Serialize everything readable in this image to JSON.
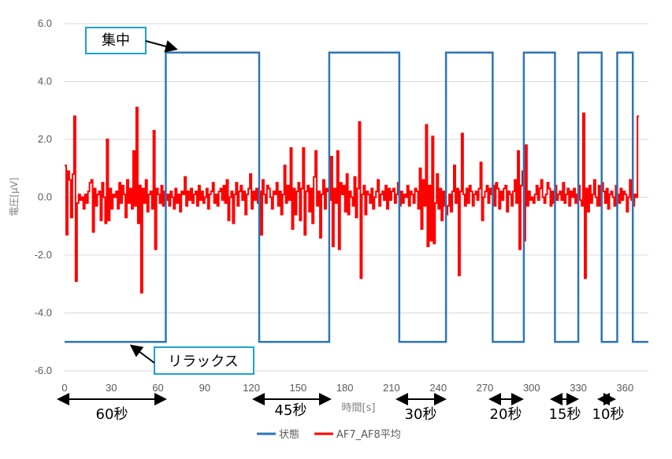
{
  "chart_data": {
    "type": "line",
    "xlabel": "時間[s]",
    "ylabel": "電圧[μV]",
    "xlim": [
      0,
      375
    ],
    "ylim": [
      -6,
      6
    ],
    "x_ticks": [
      0,
      30,
      60,
      90,
      120,
      150,
      180,
      210,
      240,
      270,
      300,
      330,
      360
    ],
    "y_ticks": [
      "6.0",
      "4.0",
      "2.0",
      "0.0",
      "-2.0",
      "-4.0",
      "-6.0"
    ],
    "grid": "horizontal",
    "legend": {
      "position": "bottom-center",
      "entries": [
        "状態",
        "AF7_AF8平均"
      ]
    },
    "series": [
      {
        "name": "状態",
        "color": "#2e75b6",
        "step_x": [
          0,
          65,
          65,
          125,
          125,
          170,
          170,
          215,
          215,
          245,
          245,
          275,
          275,
          295,
          295,
          315,
          315,
          330,
          330,
          345,
          345,
          355,
          355,
          365,
          365,
          375
        ],
        "step_y": [
          -5,
          -5,
          5,
          5,
          -5,
          -5,
          5,
          5,
          -5,
          -5,
          5,
          5,
          -5,
          -5,
          5,
          5,
          -5,
          -5,
          5,
          5,
          -5,
          -5,
          5,
          5,
          -5,
          -5
        ]
      },
      {
        "name": "AF7_AF8平均",
        "color": "#ff0000",
        "step_x": [
          0,
          1,
          2,
          3,
          4,
          5,
          6,
          7,
          8,
          9,
          10,
          11,
          12,
          13,
          14,
          15,
          16,
          17,
          18,
          19,
          20,
          21,
          22,
          23,
          24,
          25,
          26,
          27,
          28,
          29,
          30,
          31,
          32,
          33,
          34,
          35,
          36,
          37,
          38,
          39,
          40,
          41,
          42,
          43,
          44,
          45,
          46,
          47,
          48,
          49,
          50,
          51,
          52,
          53,
          54,
          55,
          56,
          57,
          58,
          59,
          60,
          61,
          62,
          63,
          64,
          65,
          66,
          67,
          68,
          69,
          70,
          71,
          72,
          73,
          74,
          75,
          76,
          77,
          78,
          79,
          80,
          81,
          82,
          83,
          84,
          85,
          86,
          87,
          88,
          89,
          90,
          91,
          92,
          93,
          94,
          95,
          96,
          97,
          98,
          99,
          100,
          101,
          102,
          103,
          104,
          105,
          106,
          107,
          108,
          109,
          110,
          111,
          112,
          113,
          114,
          115,
          116,
          117,
          118,
          119,
          120,
          121,
          122,
          123,
          124,
          125,
          126,
          127,
          128,
          129,
          130,
          131,
          132,
          133,
          134,
          135,
          136,
          137,
          138,
          139,
          140,
          141,
          142,
          143,
          144,
          145,
          146,
          147,
          148,
          149,
          150,
          151,
          152,
          153,
          154,
          155,
          156,
          157,
          158,
          159,
          160,
          161,
          162,
          163,
          164,
          165,
          166,
          167,
          168,
          169,
          170,
          171,
          172,
          173,
          174,
          175,
          176,
          177,
          178,
          179,
          180,
          181,
          182,
          183,
          184,
          185,
          186,
          187,
          188,
          189,
          190,
          191,
          192,
          193,
          194,
          195,
          196,
          197,
          198,
          199,
          200,
          201,
          202,
          203,
          204,
          205,
          206,
          207,
          208,
          209,
          210,
          211,
          212,
          213,
          214,
          215,
          216,
          217,
          218,
          219,
          220,
          221,
          222,
          223,
          224,
          225,
          226,
          227,
          228,
          229,
          230,
          231,
          232,
          233,
          234,
          235,
          236,
          237,
          238,
          239,
          240,
          241,
          242,
          243,
          244,
          245,
          246,
          247,
          248,
          249,
          250,
          251,
          252,
          253,
          254,
          255,
          256,
          257,
          258,
          259,
          260,
          261,
          262,
          263,
          264,
          265,
          266,
          267,
          268,
          269,
          270,
          271,
          272,
          273,
          274,
          275,
          276,
          277,
          278,
          279,
          280,
          281,
          282,
          283,
          284,
          285,
          286,
          287,
          288,
          289,
          290,
          291,
          292,
          293,
          294,
          295,
          296,
          297,
          298,
          299,
          300,
          301,
          302,
          303,
          304,
          305,
          306,
          307,
          308,
          309,
          310,
          311,
          312,
          313,
          314,
          315,
          316,
          317,
          318,
          319,
          320,
          321,
          322,
          323,
          324,
          325,
          326,
          327,
          328,
          329,
          330,
          331,
          332,
          333,
          334,
          335,
          336,
          337,
          338,
          339,
          340,
          341,
          342,
          343,
          344,
          345,
          346,
          347,
          348,
          349,
          350,
          351,
          352,
          353,
          354,
          355,
          356,
          357,
          358,
          359,
          360,
          361,
          362,
          363,
          364,
          365,
          366,
          367,
          368,
          369,
          370,
          371,
          372,
          373,
          374
        ],
        "step_y": [
          1.1,
          -1.3,
          0.9,
          0.6,
          -0.7,
          0.8,
          2.8,
          -2.9,
          -0.2,
          0.1,
          -0.1,
          0.0,
          -0.4,
          0.1,
          -0.2,
          0.2,
          0.5,
          0.6,
          -1.2,
          0.3,
          -0.3,
          0.1,
          0.2,
          -0.8,
          0.5,
          0.0,
          -0.9,
          2.0,
          -0.8,
          0.3,
          -0.4,
          0.1,
          0.0,
          0.2,
          -0.4,
          0.5,
          -0.2,
          0.4,
          0.1,
          -0.7,
          0.6,
          -0.2,
          0.3,
          -0.4,
          1.6,
          -0.3,
          3.1,
          -0.9,
          0.4,
          -3.3,
          0.3,
          -0.2,
          0.6,
          -0.5,
          0.1,
          0.2,
          -0.4,
          2.3,
          -1.8,
          0.3,
          0.1,
          -0.2,
          0.4,
          -0.3,
          0.2,
          -0.1,
          0.1,
          -0.3,
          0.2,
          0.0,
          -0.4,
          0.3,
          -0.2,
          0.1,
          -0.5,
          0.2,
          0.1,
          0.7,
          -0.3,
          0.2,
          -0.1,
          0.3,
          -0.2,
          0.1,
          0.2,
          -0.3,
          0.4,
          -0.1,
          0.2,
          -0.2,
          0.0,
          0.3,
          -0.4,
          0.1,
          0.2,
          0.5,
          -0.2,
          0.1,
          -0.3,
          0.2,
          0.3,
          -0.1,
          0.4,
          -0.2,
          0.6,
          -0.8,
          0.0,
          0.2,
          -0.9,
          0.1,
          0.5,
          -0.3,
          0.2,
          0.4,
          -0.1,
          0.2,
          -0.6,
          0.1,
          0.3,
          0.8,
          -0.4,
          0.2,
          -0.1,
          0.3,
          -0.2,
          0.2,
          -1.3,
          0.6,
          0.1,
          -0.2,
          0.4,
          0.3,
          0.0,
          -0.4,
          0.2,
          0.1,
          0.5,
          -0.3,
          0.2,
          -0.6,
          0.1,
          1.1,
          -0.2,
          0.4,
          -0.1,
          1.7,
          -1.1,
          0.3,
          -0.6,
          0.2,
          0.5,
          -0.8,
          0.3,
          1.7,
          -1.3,
          0.2,
          0.4,
          -0.5,
          0.3,
          -0.9,
          0.7,
          1.6,
          -0.3,
          0.2,
          -1.4,
          0.1,
          0.6,
          -0.4,
          0.3,
          0.2,
          -0.1,
          1.4,
          -1.7,
          0.3,
          -0.2,
          1.6,
          -1.8,
          0.5,
          0.1,
          0.4,
          -0.5,
          0.8,
          -0.6,
          0.2,
          0.0,
          -0.3,
          0.7,
          -0.7,
          0.3,
          2.6,
          -2.8,
          0.1,
          0.4,
          -0.6,
          0.2,
          0.1,
          -0.2,
          0.3,
          -0.4,
          0.0,
          0.2,
          0.6,
          -0.3,
          0.1,
          0.2,
          -0.1,
          0.4,
          -0.4,
          0.3,
          -0.1,
          0.2,
          0.3,
          -0.2,
          0.1,
          0.5,
          -0.3,
          0.2,
          -0.2,
          0.1,
          0.0,
          0.4,
          -0.3,
          0.2,
          0.1,
          -0.2,
          0.3,
          0.2,
          -0.4,
          1.0,
          -1.1,
          0.6,
          -0.3,
          2.5,
          -1.7,
          0.4,
          -1.5,
          2.1,
          -1.6,
          -0.2,
          0.8,
          -0.4,
          0.3,
          -0.8,
          0.2,
          -0.3,
          -0.6,
          -0.3,
          0.1,
          -0.5,
          0.2,
          1.1,
          -0.2,
          0.3,
          -2.7,
          0.2,
          2.2,
          0.1,
          -0.3,
          0.3,
          -0.2,
          0.4,
          0.2,
          -0.3,
          0.1,
          0.2,
          -0.1,
          0.3,
          1.2,
          -0.8,
          0.0,
          0.2,
          0.4,
          -0.2,
          0.3,
          0.1,
          0.4,
          -0.3,
          0.5,
          0.3,
          -0.4,
          0.2,
          -0.1,
          0.3,
          0.4,
          -0.5,
          0.2,
          0.1,
          -0.3,
          0.2,
          0.6,
          -0.2,
          1.6,
          -1.8,
          0.4,
          0.9,
          -1.5,
          1.8,
          -0.3,
          0.2,
          -0.1,
          0.0,
          -0.2,
          0.1,
          0.4,
          -0.1,
          0.3,
          0.6,
          0.0,
          -0.2,
          0.1,
          0.5,
          0.3,
          -0.3,
          0.2,
          -0.2,
          0.4,
          -0.1,
          0.1,
          0.2,
          -0.1,
          0.5,
          -0.2,
          0.1,
          0.3,
          -0.3,
          0.2,
          0.0,
          0.3,
          -0.2,
          0.1,
          0.4,
          -0.1,
          -0.3,
          2.9,
          -2.8,
          0.3,
          -0.5,
          0.4,
          -0.2,
          0.1,
          0.6,
          0.0,
          -0.3,
          0.4,
          -0.3,
          0.5,
          0.2,
          -0.2,
          0.3,
          -0.4,
          0.1,
          0.2,
          0.0,
          -0.3,
          0.4,
          0.1,
          -0.2,
          0.3,
          -0.1,
          0.2,
          0.1,
          -0.5,
          0.0,
          0.6,
          -0.1,
          -0.3,
          0.1,
          0.0,
          2.8
        ]
      }
    ],
    "annotations": {
      "callout_focus": "集中",
      "callout_relax": "リラックス",
      "durations": [
        "60秒",
        "45秒",
        "30秒",
        "20秒",
        "15秒",
        "10秒"
      ]
    }
  }
}
